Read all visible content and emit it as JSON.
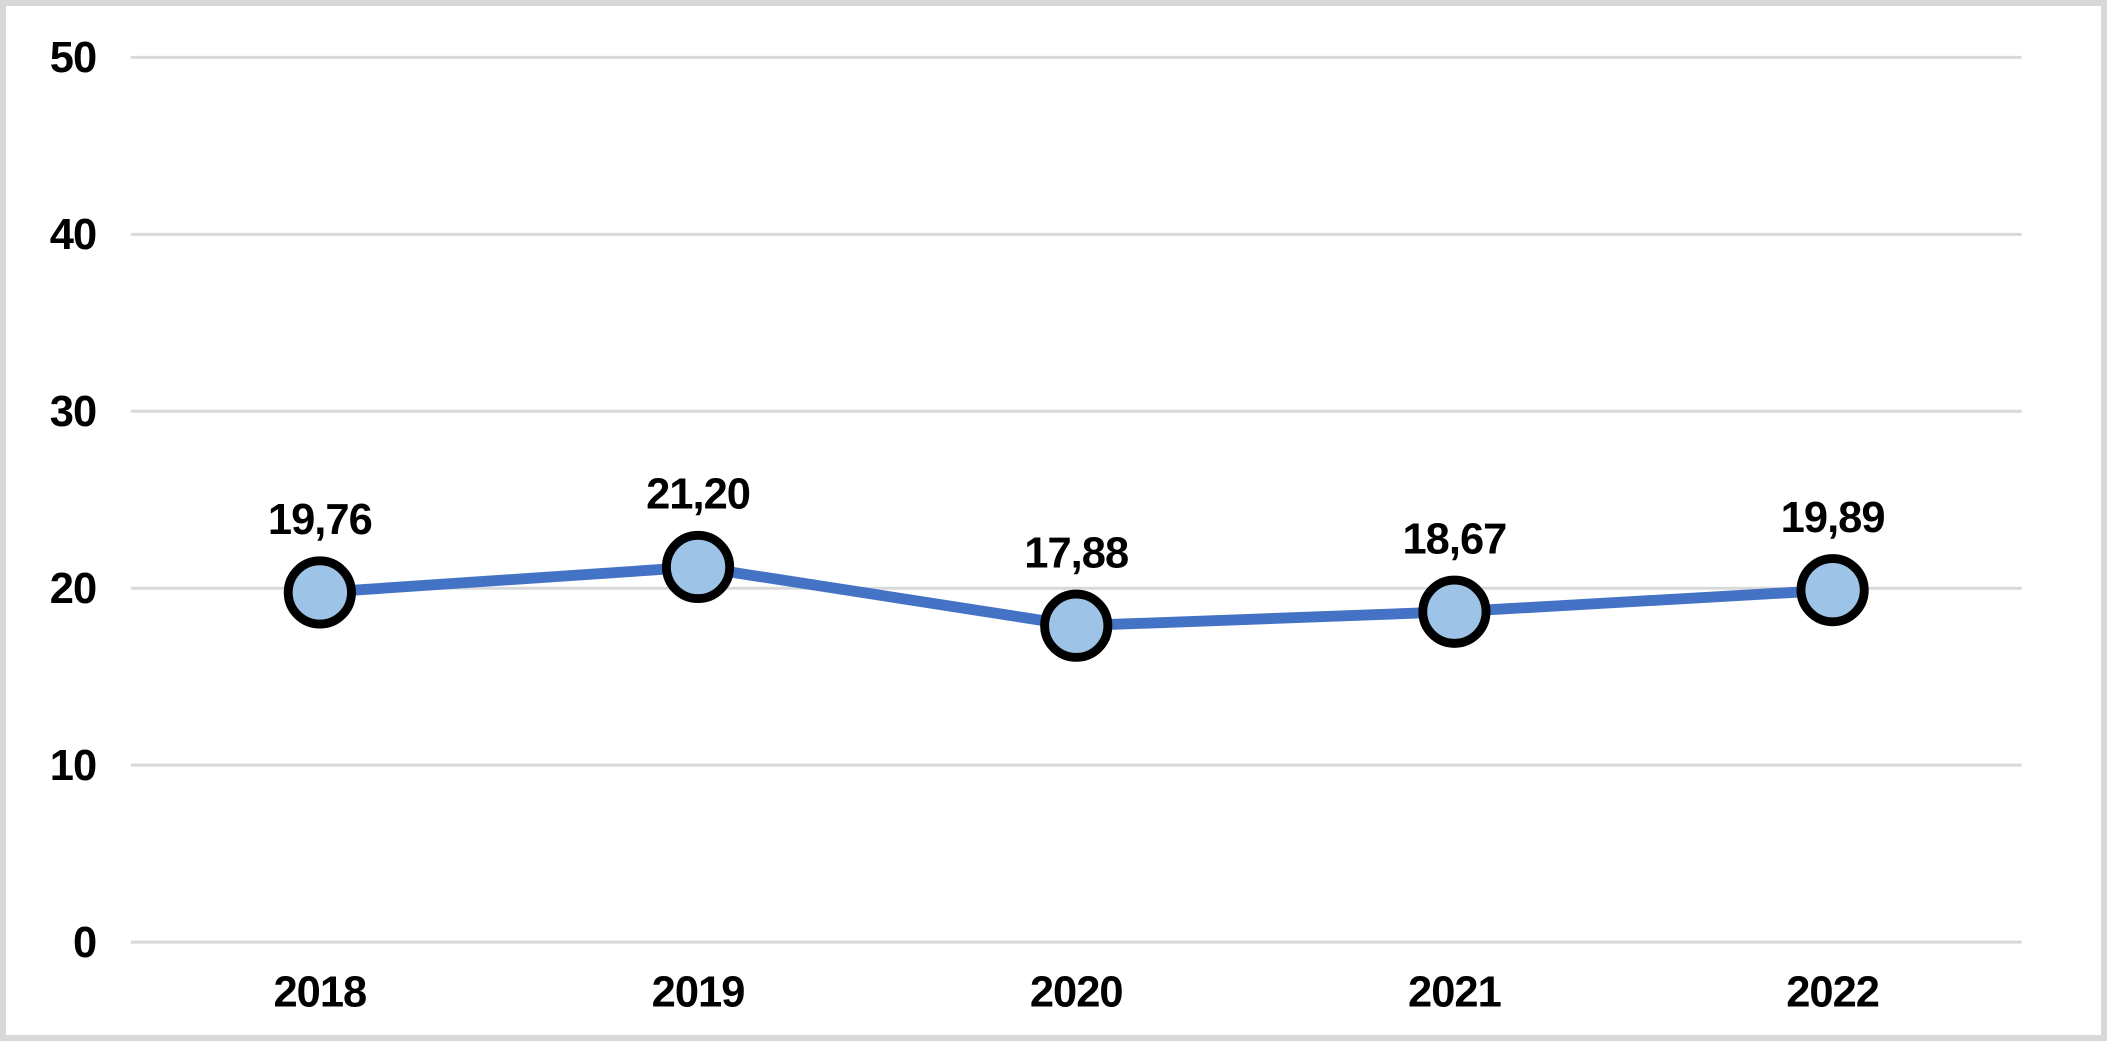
{
  "chart_data": {
    "type": "line",
    "title": "",
    "xlabel": "",
    "ylabel": "",
    "categories": [
      "2018",
      "2019",
      "2020",
      "2021",
      "2022"
    ],
    "values": [
      19.76,
      21.2,
      17.88,
      18.67,
      19.89
    ],
    "point_labels": [
      "19,76",
      "21,20",
      "17,88",
      "18,67",
      "19,89"
    ],
    "ylim": [
      0,
      50
    ],
    "ytick_step": 10,
    "ytick_labels": [
      "0",
      "10",
      "20",
      "30",
      "40",
      "50"
    ],
    "grid": true,
    "legend": "none",
    "decimal_separator": ",",
    "colors": {
      "line": "#4472c4",
      "marker_fill": "#9dc3e6",
      "marker_stroke": "#000000",
      "gridline": "#d9d9d9",
      "text": "#000000",
      "frame_border": "#d8d8d8",
      "background": "#ffffff"
    }
  }
}
